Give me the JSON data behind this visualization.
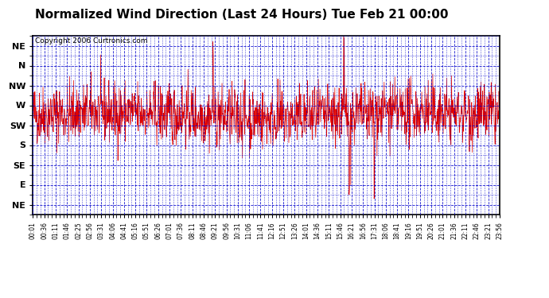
{
  "title": "Normalized Wind Direction (Last 24 Hours) Tue Feb 21 00:00",
  "copyright": "Copyright 2006 Curtronics.com",
  "ytick_labels": [
    "NE",
    "N",
    "NW",
    "W",
    "SW",
    "S",
    "SE",
    "E",
    "NE"
  ],
  "ytick_values": [
    8,
    7,
    6,
    5,
    4,
    3,
    2,
    1,
    0
  ],
  "line_color": "#dd0000",
  "grid_color": "#0000cc",
  "background_color": "#ffffff",
  "title_fontsize": 11,
  "copyright_fontsize": 6.5,
  "axis_label_fontsize": 8,
  "seed": 42,
  "n_points": 1440,
  "mean_val": 4.5,
  "std_val": 0.75,
  "xtick_labels": [
    "00:01",
    "00:36",
    "01:11",
    "01:46",
    "02:25",
    "02:56",
    "03:31",
    "04:06",
    "04:41",
    "05:16",
    "05:51",
    "06:26",
    "07:01",
    "07:36",
    "08:11",
    "08:46",
    "09:21",
    "09:56",
    "10:31",
    "11:06",
    "11:41",
    "12:16",
    "12:51",
    "13:26",
    "14:01",
    "14:36",
    "15:11",
    "15:46",
    "16:21",
    "16:56",
    "17:31",
    "18:06",
    "18:41",
    "19:16",
    "19:51",
    "20:26",
    "21:01",
    "21:36",
    "22:11",
    "22:46",
    "23:21",
    "23:56"
  ]
}
